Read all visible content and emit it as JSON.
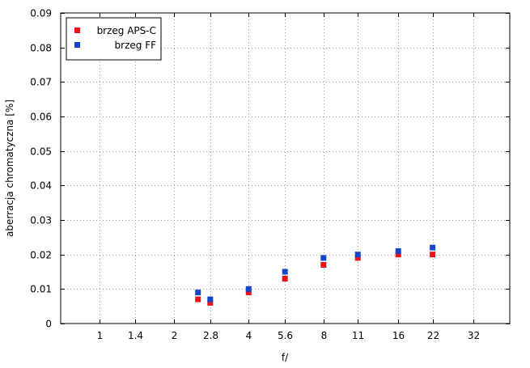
{
  "chart_data": {
    "type": "scatter",
    "x_ticks": [
      "1",
      "1.4",
      "2",
      "2.8",
      "4",
      "5.6",
      "8",
      "11",
      "16",
      "22",
      "32"
    ],
    "y_ticks": [
      "0",
      "0.01",
      "0.02",
      "0.03",
      "0.04",
      "0.05",
      "0.06",
      "0.07",
      "0.08",
      "0.09"
    ],
    "xlabel": "f/",
    "ylabel": "aberracja chromatyczna [%]",
    "x_scale": "log2",
    "xlim": [
      0.7,
      45
    ],
    "ylim": [
      0,
      0.09
    ],
    "grid": true,
    "legend_position": "top-left",
    "series": [
      {
        "name": "brzeg APS-C",
        "color": "#e8141c",
        "points": [
          {
            "x": 2.5,
            "y": 0.007
          },
          {
            "x": 2.8,
            "y": 0.006
          },
          {
            "x": 4,
            "y": 0.009
          },
          {
            "x": 5.6,
            "y": 0.013
          },
          {
            "x": 8,
            "y": 0.017
          },
          {
            "x": 11,
            "y": 0.019
          },
          {
            "x": 16,
            "y": 0.02
          },
          {
            "x": 22,
            "y": 0.02
          }
        ]
      },
      {
        "name": "brzeg FF",
        "color": "#1446c8",
        "points": [
          {
            "x": 2.5,
            "y": 0.009
          },
          {
            "x": 2.8,
            "y": 0.007
          },
          {
            "x": 4,
            "y": 0.01
          },
          {
            "x": 5.6,
            "y": 0.015
          },
          {
            "x": 8,
            "y": 0.019
          },
          {
            "x": 11,
            "y": 0.02
          },
          {
            "x": 16,
            "y": 0.021
          },
          {
            "x": 22,
            "y": 0.022
          }
        ]
      }
    ]
  }
}
